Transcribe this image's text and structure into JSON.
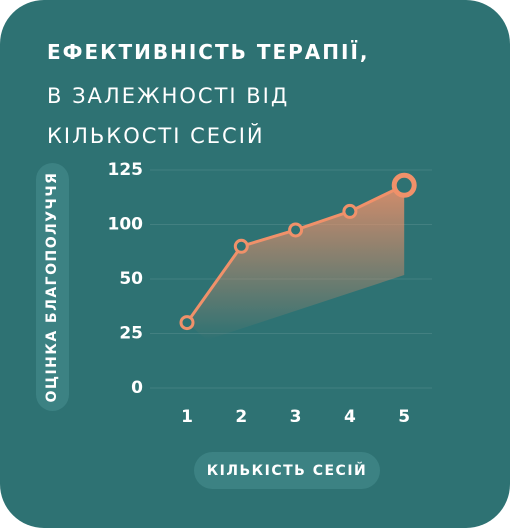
{
  "chart_data": {
    "type": "line",
    "title": "ЕФЕКТИВНІСТЬ ТЕРАПІЇ,",
    "subtitle": "В ЗАЛЕЖНОСТІ ВІД КІЛЬКОСТІ СЕСІЙ",
    "x_label": "КІЛЬКІСТЬ СЕСІЙ",
    "y_label": "ОЦІНКА БЛАГОПОЛУЧЧЯ",
    "categories": [
      "1",
      "2",
      "3",
      "4",
      "5"
    ],
    "values": [
      30,
      80,
      95,
      106,
      118
    ],
    "color": "#f0916a",
    "ylim": [
      0,
      125
    ],
    "yticks": [
      0,
      25,
      50,
      100,
      125
    ],
    "grid": true
  }
}
